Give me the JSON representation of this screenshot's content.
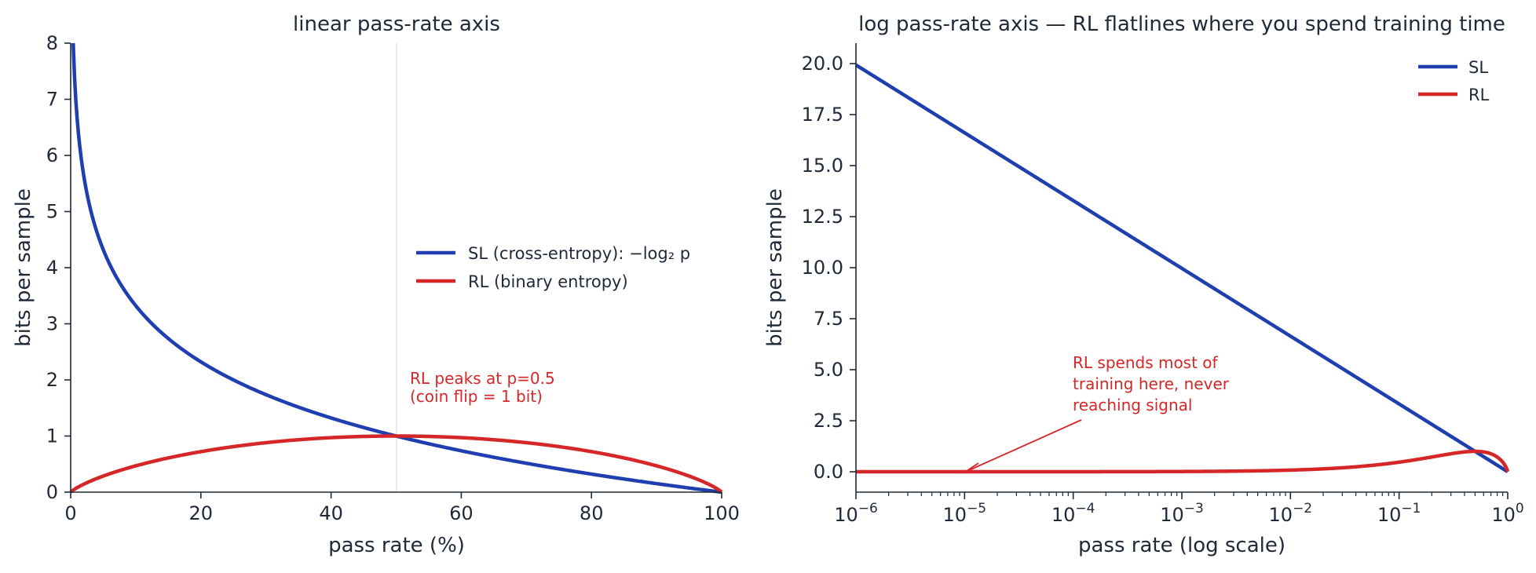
{
  "colors": {
    "sl": "#1f3fb0",
    "rl": "#d62728",
    "axis": "#1f2937",
    "guide": "#e5e5e5"
  },
  "chart_data": [
    {
      "type": "line",
      "title": "linear pass-rate axis",
      "xlabel": "pass rate (%)",
      "ylabel": "bits per sample",
      "xlim": [
        0,
        100
      ],
      "ylim": [
        0,
        8
      ],
      "x_ticks": [
        "0",
        "20",
        "40",
        "60",
        "80",
        "100"
      ],
      "y_ticks": [
        "0",
        "1",
        "2",
        "3",
        "4",
        "5",
        "6",
        "7",
        "8"
      ],
      "grid": false,
      "legend": {
        "placement": "center-right",
        "entries": [
          "SL (cross-entropy): −log₂ p",
          "RL (binary entropy)"
        ]
      },
      "reference_line": {
        "x": 50
      },
      "series": [
        {
          "name": "SL (cross-entropy): −log₂ p",
          "function": "-log2(p)",
          "color": "#1f3fb0",
          "x": [
            0.4,
            1,
            5,
            10,
            20,
            30,
            40,
            50,
            60,
            70,
            80,
            90,
            100
          ],
          "y": [
            7.97,
            6.64,
            4.32,
            3.32,
            2.32,
            1.74,
            1.32,
            1.0,
            0.74,
            0.51,
            0.32,
            0.15,
            0.0
          ]
        },
        {
          "name": "RL (binary entropy)",
          "function": "-p*log2(p)-(1-p)*log2(1-p)",
          "color": "#d62728",
          "x": [
            0,
            1,
            5,
            10,
            20,
            30,
            40,
            50,
            60,
            70,
            80,
            90,
            99,
            100
          ],
          "y": [
            0.0,
            0.08,
            0.29,
            0.47,
            0.72,
            0.88,
            0.97,
            1.0,
            0.97,
            0.88,
            0.72,
            0.47,
            0.08,
            0.0
          ]
        }
      ],
      "annotations": [
        {
          "lines": [
            "RL peaks at p=0.5",
            "(coin flip = 1 bit)"
          ],
          "x": 52,
          "y": 1.9
        }
      ]
    },
    {
      "type": "line",
      "title": "log pass-rate axis — RL flatlines where you spend training time",
      "xlabel": "pass rate (log scale)",
      "ylabel": "bits per sample",
      "xscale": "log",
      "xlim": [
        1e-06,
        1
      ],
      "ylim": [
        -1,
        21
      ],
      "x_ticks": [
        {
          "base": "10",
          "exp": "−6"
        },
        {
          "base": "10",
          "exp": "−5"
        },
        {
          "base": "10",
          "exp": "−4"
        },
        {
          "base": "10",
          "exp": "−3"
        },
        {
          "base": "10",
          "exp": "−2"
        },
        {
          "base": "10",
          "exp": "−1"
        },
        {
          "base": "10",
          "exp": "0"
        }
      ],
      "y_ticks": [
        "0.0",
        "2.5",
        "5.0",
        "7.5",
        "10.0",
        "12.5",
        "15.0",
        "17.5",
        "20.0"
      ],
      "grid": false,
      "legend": {
        "placement": "top-right",
        "entries": [
          "SL",
          "RL"
        ]
      },
      "series": [
        {
          "name": "SL",
          "function": "-log2(p)",
          "color": "#1f3fb0",
          "x": [
            1e-06,
            1e-05,
            0.0001,
            0.001,
            0.01,
            0.1,
            0.5,
            1
          ],
          "y": [
            19.93,
            16.61,
            13.29,
            9.97,
            6.64,
            3.32,
            1.0,
            0.0
          ]
        },
        {
          "name": "RL",
          "function": "-p*log2(p)-(1-p)*log2(1-p)",
          "color": "#d62728",
          "x": [
            1e-06,
            1e-05,
            0.0001,
            0.001,
            0.01,
            0.1,
            0.5,
            0.9,
            1
          ],
          "y": [
            0.0,
            0.0002,
            0.0015,
            0.011,
            0.081,
            0.469,
            1.0,
            0.469,
            0.0
          ]
        }
      ],
      "annotations": [
        {
          "lines": [
            "RL spends most of",
            "training here, never",
            "reaching signal"
          ],
          "x": 0.0001,
          "y": 5.1,
          "arrow_to": {
            "x": 1e-05,
            "y": 0.0
          }
        }
      ]
    }
  ]
}
